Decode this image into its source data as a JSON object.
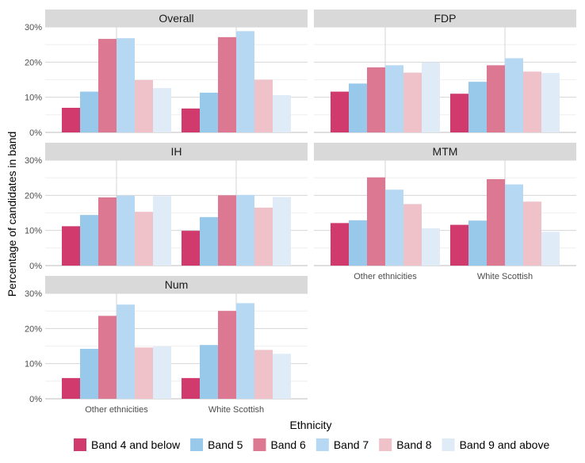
{
  "chart_data": {
    "type": "bar",
    "xlabel": "Ethnicity",
    "ylabel": "Percentage of candidates in band",
    "ylim": [
      0,
      30
    ],
    "yticks": [
      "0%",
      "10%",
      "20%",
      "30%"
    ],
    "categories": [
      "Other ethnicities",
      "White Scottish"
    ],
    "grid": true,
    "legend_position": "bottom",
    "series_names": [
      "Band 4 and below",
      "Band 5",
      "Band 6",
      "Band 7",
      "Band 8",
      "Band 9 and above"
    ],
    "series_colors": [
      "#d03a6c",
      "#98c8ea",
      "#dc7891",
      "#b7d8f2",
      "#efc1c9",
      "#dfecf8"
    ],
    "panels": [
      {
        "title": "Overall",
        "values": [
          [
            7.0,
            11.6,
            26.6,
            26.8,
            14.9,
            12.6
          ],
          [
            6.8,
            11.3,
            27.1,
            28.8,
            15.0,
            10.6
          ]
        ]
      },
      {
        "title": "FDP",
        "values": [
          [
            11.6,
            13.9,
            18.5,
            19.1,
            17.0,
            19.9
          ],
          [
            11.0,
            14.4,
            19.1,
            21.1,
            17.3,
            16.9
          ]
        ]
      },
      {
        "title": "IH",
        "values": [
          [
            11.2,
            14.4,
            19.4,
            19.9,
            15.3,
            19.8
          ],
          [
            9.9,
            13.8,
            20.0,
            20.1,
            16.5,
            19.5
          ]
        ]
      },
      {
        "title": "MTM",
        "values": [
          [
            12.1,
            12.9,
            25.1,
            21.6,
            17.5,
            10.6
          ],
          [
            11.6,
            12.8,
            24.6,
            23.1,
            18.2,
            9.6
          ]
        ]
      },
      {
        "title": "Num",
        "values": [
          [
            5.9,
            14.2,
            23.6,
            26.8,
            14.6,
            14.9
          ],
          [
            5.9,
            15.3,
            25.0,
            27.2,
            13.9,
            12.8
          ]
        ]
      }
    ]
  }
}
